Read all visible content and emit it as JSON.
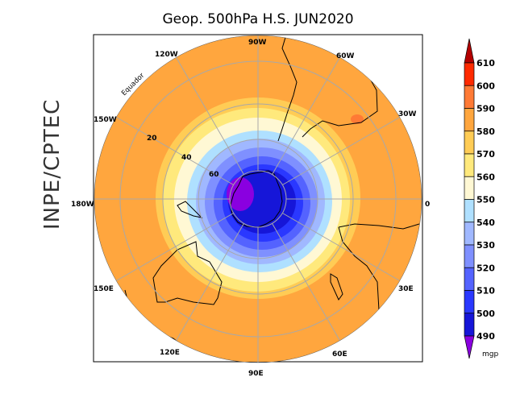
{
  "title": "Geop. 500hPa H.S. JUN2020",
  "side_label": "INPE/CPTEC",
  "map": {
    "projection": "south polar stereographic",
    "equator_label": "Equador",
    "lon_labels": {
      "lon_0": "0",
      "lon_30w": "30W",
      "lon_60w": "60W",
      "lon_90w": "90W",
      "lon_120w": "120W",
      "lon_150w": "150W",
      "lon_180w": "180W",
      "lon_150e": "150E",
      "lon_120e": "120E",
      "lon_90e": "90E",
      "lon_60e": "60E",
      "lon_30e": "30E"
    },
    "lat_labels": {
      "lat_20": "20",
      "lat_40": "40",
      "lat_60": "60"
    }
  },
  "colorbar": {
    "unit": "mgp",
    "labels": [
      "610",
      "600",
      "590",
      "580",
      "570",
      "560",
      "550",
      "540",
      "530",
      "520",
      "510",
      "500",
      "490"
    ],
    "colors": [
      "#ff2a00",
      "#ff7a35",
      "#ffa63e",
      "#ffcc55",
      "#ffe97c",
      "#fff8d4",
      "#afe0ff",
      "#a0b8ff",
      "#7f90ff",
      "#5463ff",
      "#2a38ff",
      "#1616d8"
    ],
    "over_color": "#b40000",
    "under_color": "#8a00e0"
  }
}
